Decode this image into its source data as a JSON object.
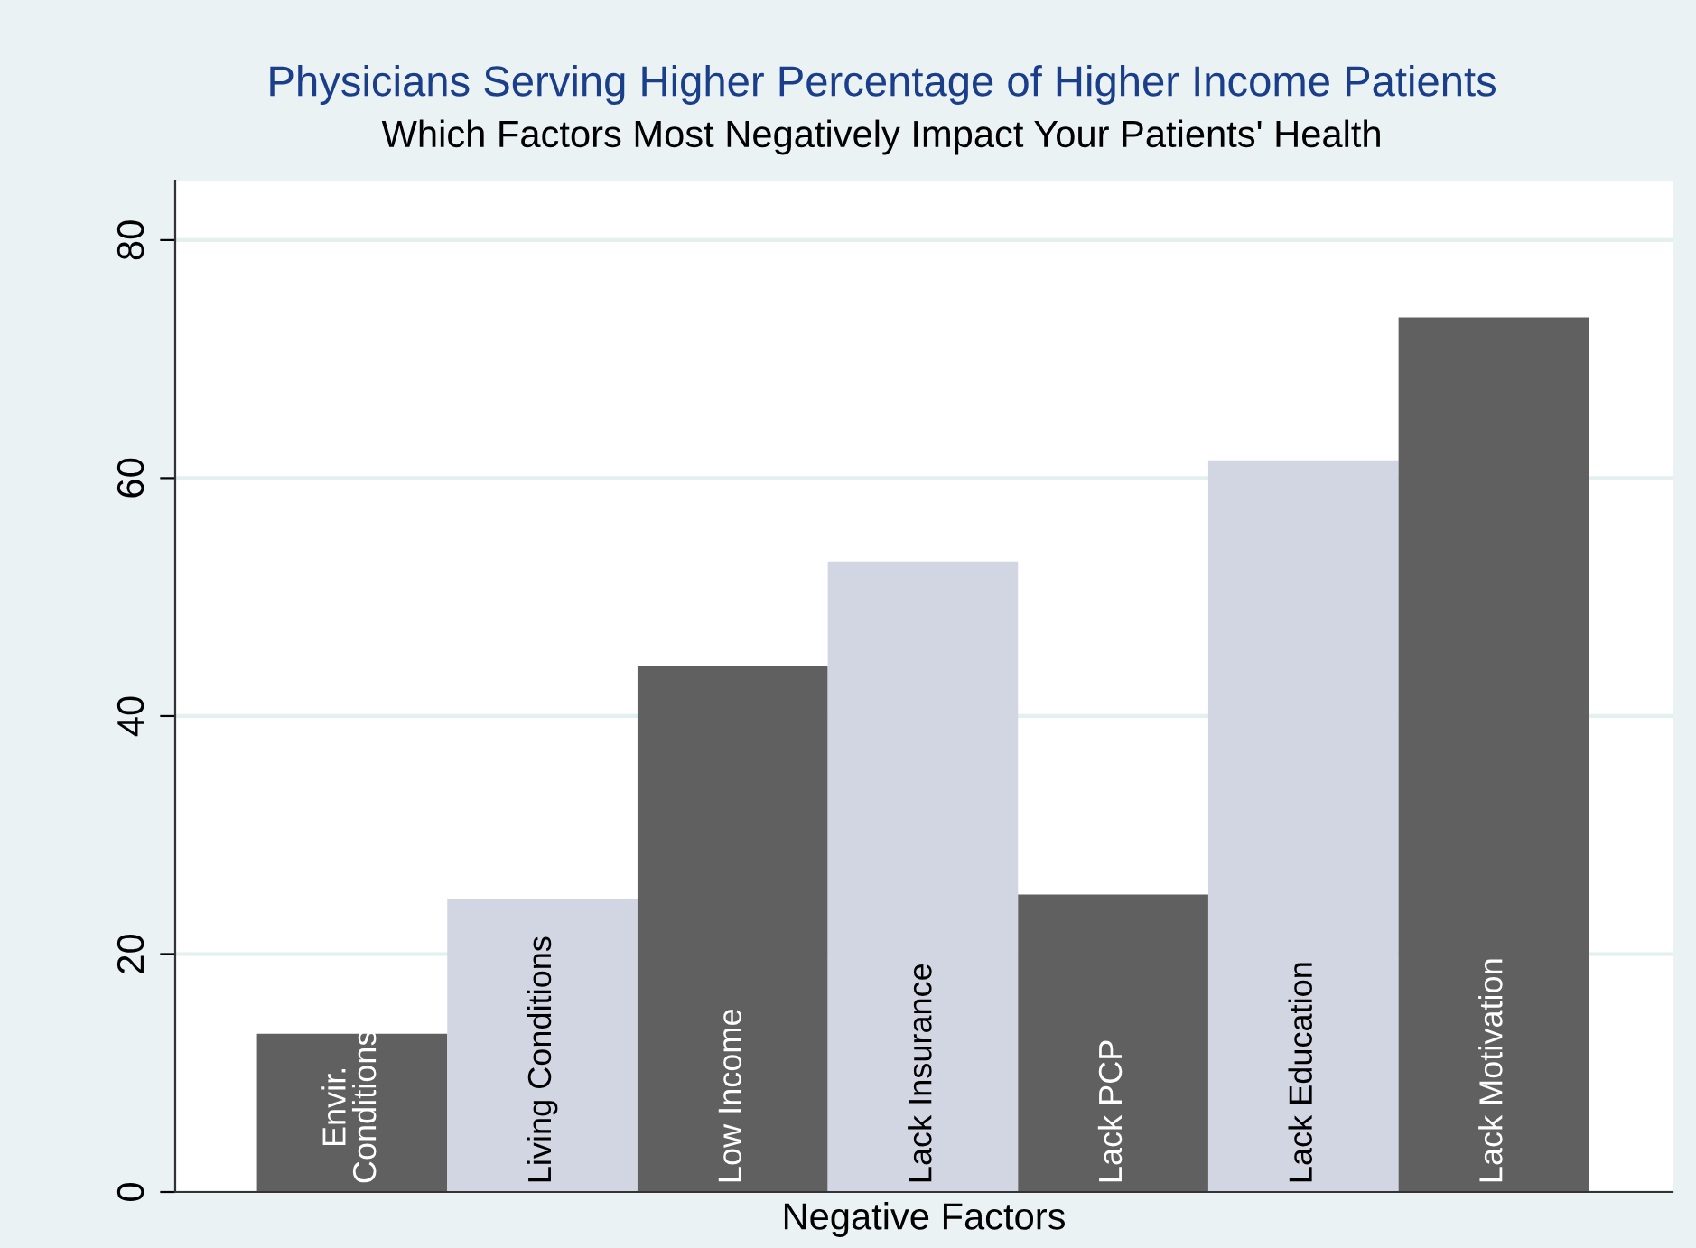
{
  "chart_data": {
    "type": "bar",
    "title": "Physicians Serving Higher Percentage of Higher Income Patients",
    "subtitle": "Which Factors Most Negatively Impact Your Patients' Health",
    "xlabel": "Negative Factors",
    "categories": [
      "Envir.\nConditions",
      "Living Conditions",
      "Low Income",
      "Lack Insurance",
      "Lack PCP",
      "Lack Education",
      "Lack Motivation"
    ],
    "values": [
      13.3,
      24.6,
      44.2,
      53.0,
      25.0,
      61.5,
      73.5
    ],
    "colors": [
      "#606060",
      "#d1d6e2",
      "#606060",
      "#d1d6e2",
      "#606060",
      "#d1d6e2",
      "#606060"
    ],
    "ylim": [
      0,
      85
    ],
    "yticks": [
      0,
      20,
      40,
      60,
      80
    ],
    "grid": "y",
    "legend": false
  }
}
